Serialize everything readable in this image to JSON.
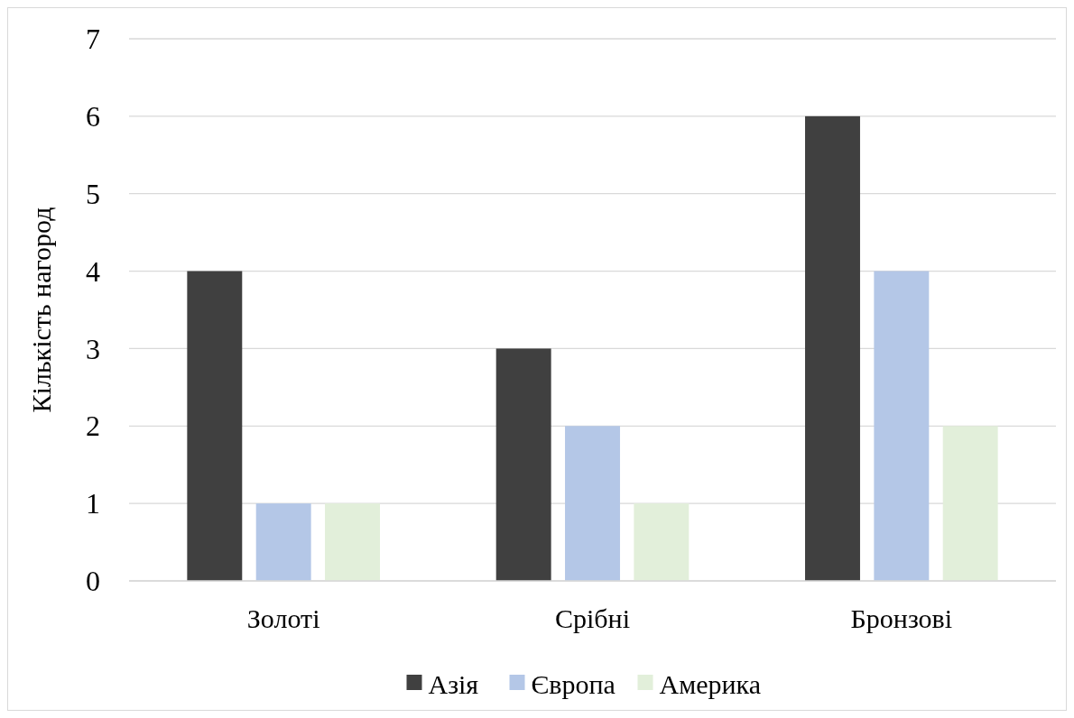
{
  "chart_data": {
    "type": "bar",
    "ylabel": "Кількість нагород",
    "categories": [
      "Золоті",
      "Срібні",
      "Бронзові"
    ],
    "series": [
      {
        "name": "Азія",
        "color": "#404040",
        "values": [
          4,
          3,
          6
        ]
      },
      {
        "name": "Європа",
        "color": "#b4c7e7",
        "values": [
          1,
          2,
          4
        ]
      },
      {
        "name": "Америка",
        "color": "#e2efda",
        "values": [
          1,
          1,
          2
        ]
      }
    ],
    "ylim": [
      0,
      7
    ],
    "yticks": [
      0,
      1,
      2,
      3,
      4,
      5,
      6,
      7
    ],
    "grid": "y",
    "legend": "bottom"
  }
}
